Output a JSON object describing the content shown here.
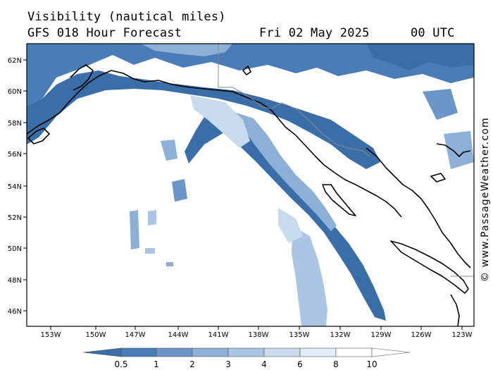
{
  "header": {
    "title": "Visibility (nautical miles)",
    "subtitle": "GFS 018 Hour Forecast",
    "date": "Fri 02 May 2025",
    "hour": "00 UTC"
  },
  "watermark": "© www.PassageWeather.com",
  "map": {
    "lat_ticks": [
      "62N",
      "60N",
      "58N",
      "56N",
      "54N",
      "52N",
      "50N",
      "48N",
      "46N"
    ],
    "lon_ticks": [
      "153W",
      "150W",
      "147W",
      "144W",
      "141W",
      "138W",
      "135W",
      "132W",
      "129W",
      "126W",
      "123W"
    ],
    "colors": {
      "land": "#ffffff",
      "coast": "#000000",
      "border": "#888888",
      "frame": "#000000"
    }
  },
  "colorbar": {
    "labels": [
      "0.5",
      "1",
      "2",
      "3",
      "4",
      "6",
      "8",
      "10"
    ],
    "colors": [
      "#3a6ea8",
      "#4a7cb8",
      "#6a96c8",
      "#8cb0d8",
      "#aac6e4",
      "#c8dcee",
      "#e2ecf7",
      "#ffffff"
    ]
  }
}
